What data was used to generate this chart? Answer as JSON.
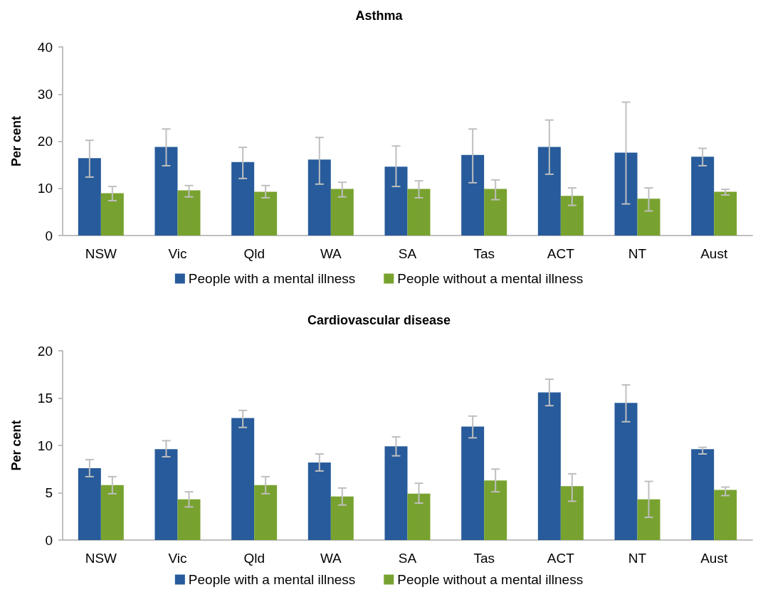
{
  "chart_data": [
    {
      "type": "bar",
      "title": "Asthma",
      "ylabel": "Per cent",
      "categories": [
        "NSW",
        "Vic",
        "Qld",
        "WA",
        "SA",
        "Tas",
        "ACT",
        "NT",
        "Aust"
      ],
      "ylim": [
        0,
        40
      ],
      "yticks": [
        0,
        10,
        20,
        30,
        40
      ],
      "grid": false,
      "legend": "bottom",
      "series": [
        {
          "name": "People with a mental illness",
          "color": "#275b9b",
          "values": [
            16.4,
            18.8,
            15.6,
            16.1,
            14.6,
            17.1,
            18.8,
            17.6,
            16.7
          ],
          "errors": [
            [
              12.4,
              20.2
            ],
            [
              14.8,
              22.6
            ],
            [
              12.1,
              18.7
            ],
            [
              10.9,
              20.8
            ],
            [
              10.4,
              19.0
            ],
            [
              11.2,
              22.6
            ],
            [
              13.0,
              24.5
            ],
            [
              6.7,
              28.3
            ],
            [
              14.8,
              18.5
            ]
          ]
        },
        {
          "name": "People without a mental illness",
          "color": "#78a22f",
          "values": [
            9.0,
            9.6,
            9.3,
            9.9,
            9.9,
            9.9,
            8.4,
            7.8,
            9.3
          ],
          "errors": [
            [
              7.4,
              10.4
            ],
            [
              8.2,
              10.6
            ],
            [
              8.0,
              10.6
            ],
            [
              8.2,
              11.3
            ],
            [
              8.0,
              11.6
            ],
            [
              7.6,
              11.8
            ],
            [
              6.4,
              10.1
            ],
            [
              5.2,
              10.1
            ],
            [
              8.6,
              9.8
            ]
          ]
        }
      ]
    },
    {
      "type": "bar",
      "title": "Cardiovascular disease",
      "ylabel": "Per cent",
      "categories": [
        "NSW",
        "Vic",
        "Qld",
        "WA",
        "SA",
        "Tas",
        "ACT",
        "NT",
        "Aust"
      ],
      "ylim": [
        0,
        20
      ],
      "yticks": [
        0,
        5,
        10,
        15,
        20
      ],
      "grid": false,
      "legend": "bottom",
      "series": [
        {
          "name": "People with a mental illness",
          "color": "#275b9b",
          "values": [
            7.6,
            9.6,
            12.9,
            8.2,
            9.9,
            12.0,
            15.6,
            14.5,
            9.6
          ],
          "errors": [
            [
              6.7,
              8.5
            ],
            [
              8.8,
              10.5
            ],
            [
              11.9,
              13.7
            ],
            [
              7.3,
              9.1
            ],
            [
              8.9,
              10.9
            ],
            [
              10.8,
              13.1
            ],
            [
              14.2,
              17.0
            ],
            [
              12.5,
              16.4
            ],
            [
              9.1,
              9.8
            ]
          ]
        },
        {
          "name": "People without a mental illness",
          "color": "#78a22f",
          "values": [
            5.8,
            4.3,
            5.8,
            4.6,
            4.9,
            6.3,
            5.7,
            4.3,
            5.3
          ],
          "errors": [
            [
              4.9,
              6.7
            ],
            [
              3.5,
              5.1
            ],
            [
              4.9,
              6.7
            ],
            [
              3.7,
              5.5
            ],
            [
              3.9,
              6.0
            ],
            [
              5.1,
              7.5
            ],
            [
              4.1,
              7.0
            ],
            [
              2.4,
              6.2
            ],
            [
              4.7,
              5.6
            ]
          ]
        }
      ]
    }
  ]
}
